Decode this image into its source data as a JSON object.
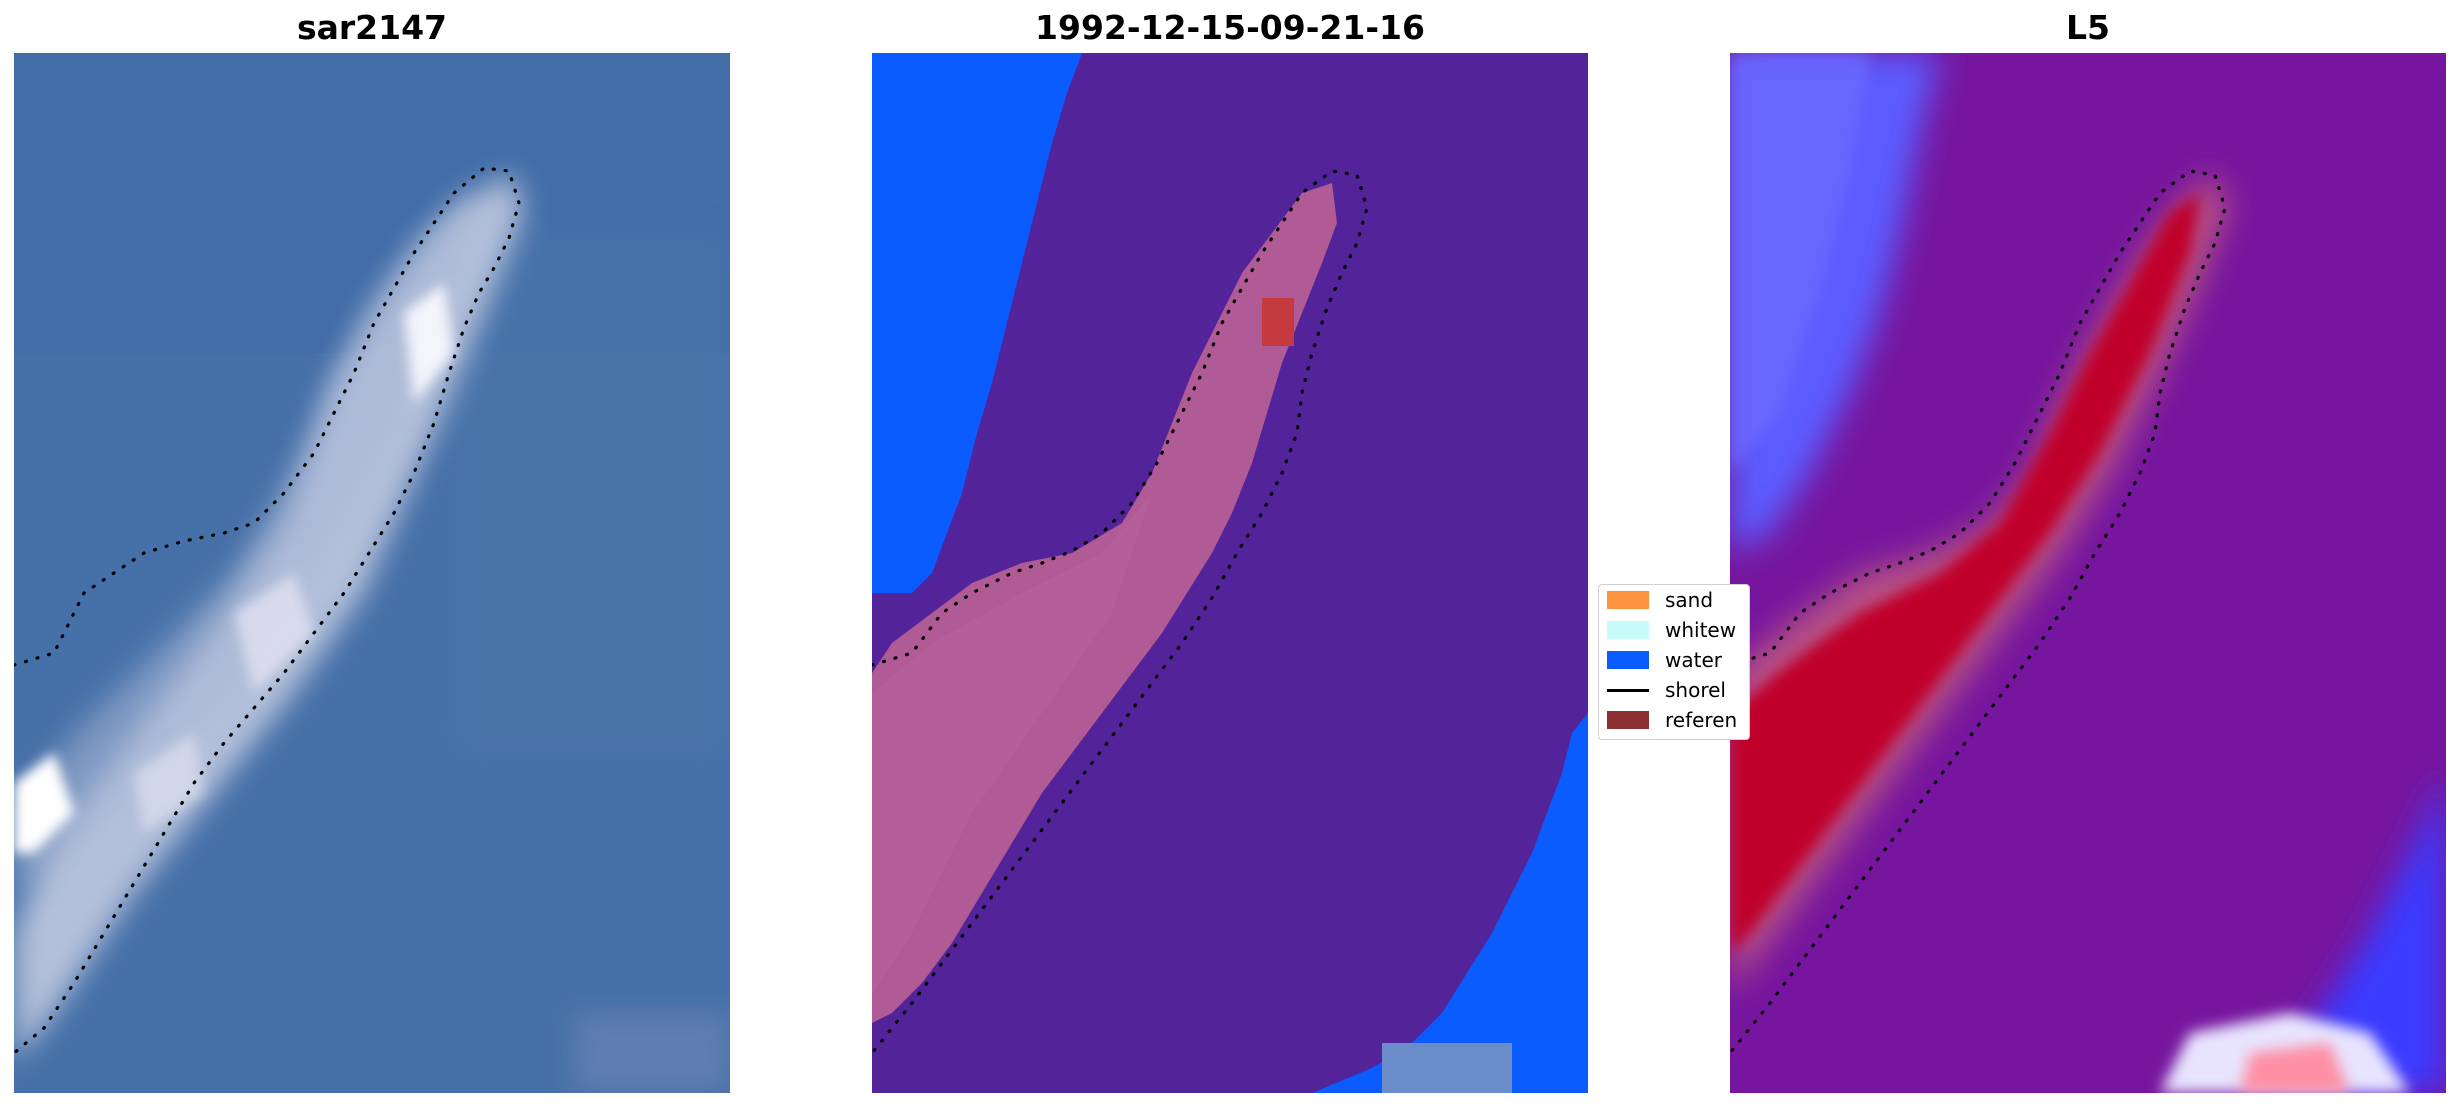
{
  "panels": [
    {
      "title": "sar2147"
    },
    {
      "title": "1992-12-15-09-21-16"
    },
    {
      "title": "L5"
    }
  ],
  "legend": {
    "items": [
      {
        "label": "sand",
        "color": "#ff9340",
        "kind": "patch"
      },
      {
        "label": "whitew",
        "color": "#c8fcfa",
        "kind": "patch"
      },
      {
        "label": "water",
        "color": "#0a5cff",
        "kind": "patch"
      },
      {
        "label": "shorel",
        "color": "#000000",
        "kind": "line"
      },
      {
        "label": "referen",
        "color": "#8b2f33",
        "kind": "patch"
      }
    ]
  },
  "colors": {
    "satellite_water": "#4670a8",
    "classified_background": "#53239a",
    "classified_water": "#0a5cff",
    "classified_sand": "#b05a96",
    "reference_patch": "#c53a3e",
    "index_background": "#76169e",
    "index_high": "#c0002a",
    "index_low": "#5c5cff"
  }
}
